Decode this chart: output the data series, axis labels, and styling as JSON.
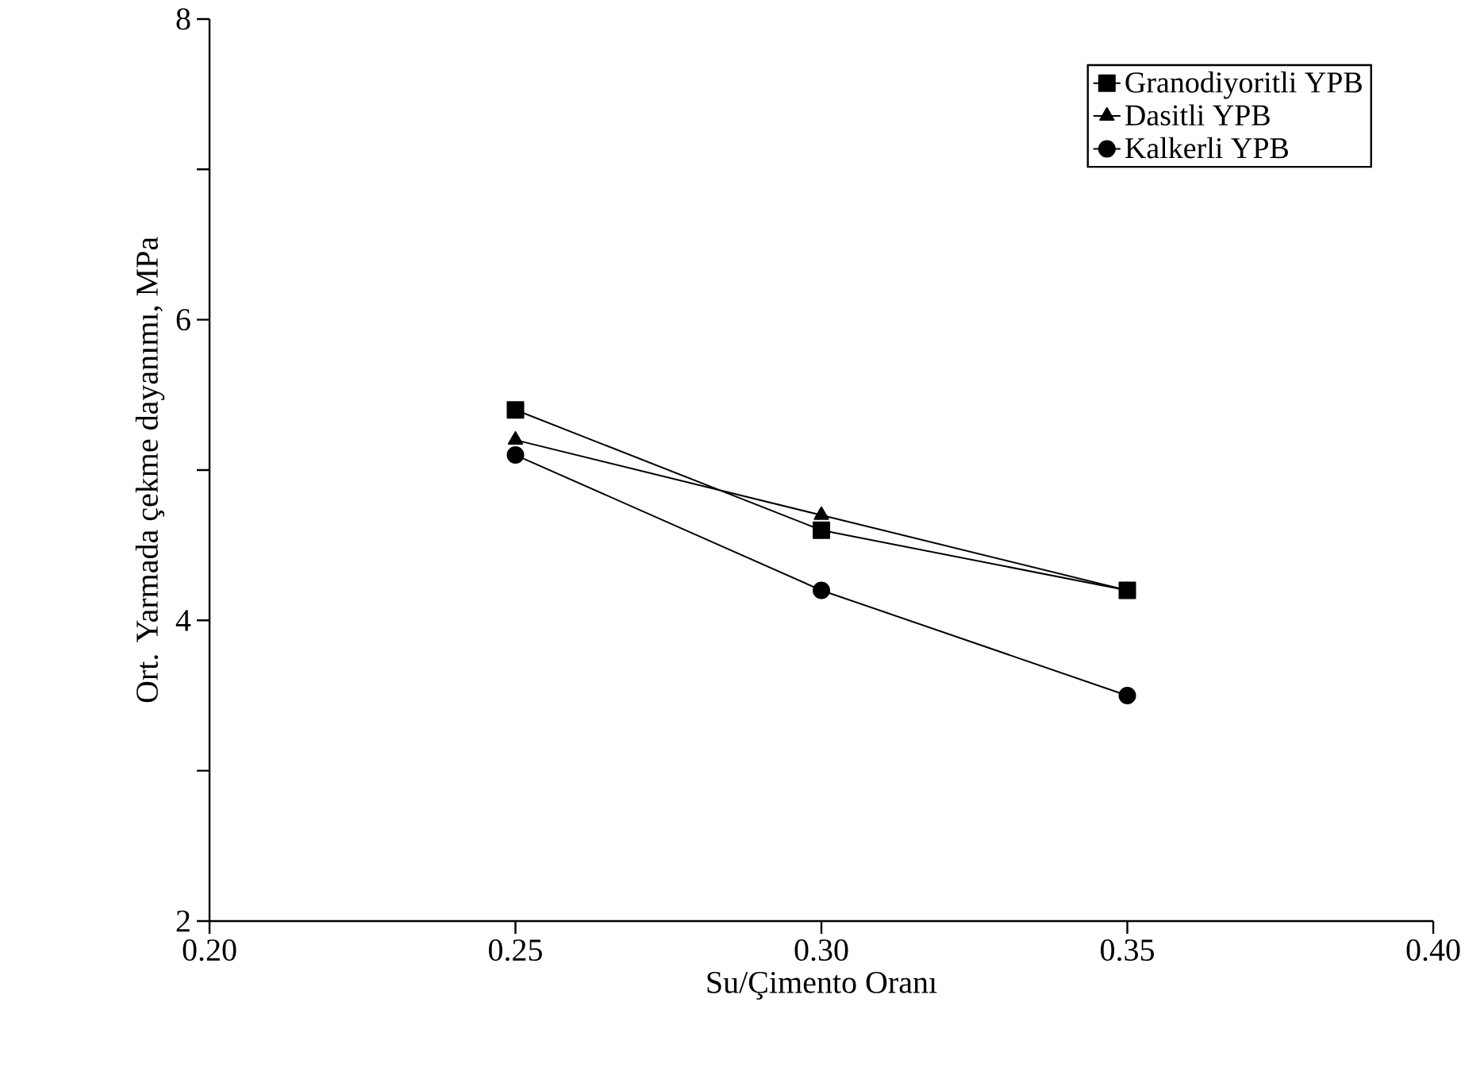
{
  "chart_data": {
    "type": "line",
    "xlabel": "Su/Çimento Oranı",
    "ylabel": "Ort. Yarmada çekme dayanımı, MPa",
    "x": [
      0.25,
      0.3,
      0.35
    ],
    "series": [
      {
        "name": "Granodiyoritli YPB",
        "color": "#000000",
        "marker": "square",
        "values": [
          5.4,
          4.6,
          4.2
        ]
      },
      {
        "name": "Dasitli YPB",
        "color": "#000000",
        "marker": "triangle",
        "values": [
          5.2,
          4.7,
          4.2
        ]
      },
      {
        "name": "Kalkerli YPB",
        "color": "#000000",
        "marker": "circle",
        "values": [
          5.1,
          4.2,
          3.5
        ]
      }
    ],
    "xlim": [
      0.2,
      0.4
    ],
    "ylim": [
      2,
      8
    ],
    "xticks": [
      {
        "value": 0.2,
        "label": "0.20"
      },
      {
        "value": 0.25,
        "label": "0.25"
      },
      {
        "value": 0.3,
        "label": "0.30"
      },
      {
        "value": 0.35,
        "label": "0.35"
      },
      {
        "value": 0.4,
        "label": "0.40"
      }
    ],
    "yticks": [
      2,
      {
        "value": 3,
        "label": null
      },
      4,
      {
        "value": 5,
        "label": null
      },
      6,
      {
        "value": 7,
        "label": null
      },
      8
    ],
    "grid": false,
    "legend": "top right",
    "line_style": "solid"
  }
}
